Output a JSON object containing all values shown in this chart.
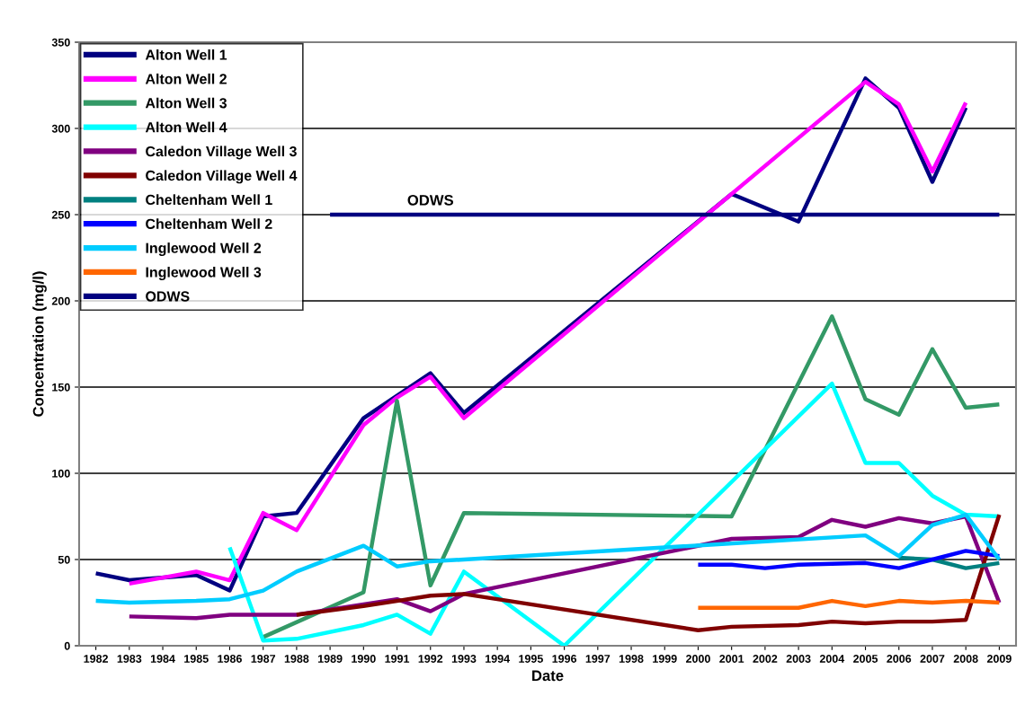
{
  "chart_data": {
    "type": "line",
    "xlabel": "Date",
    "ylabel": "Concentration (mg/l)",
    "xlim": [
      1981.5,
      2009.5
    ],
    "xticks": [
      1982,
      1983,
      1984,
      1985,
      1986,
      1987,
      1988,
      1989,
      1990,
      1991,
      1992,
      1993,
      1994,
      1995,
      1996,
      1997,
      1998,
      1999,
      2000,
      2001,
      2002,
      2003,
      2004,
      2005,
      2006,
      2007,
      2008,
      2009
    ],
    "ylim": [
      0,
      350
    ],
    "yticks": [
      0,
      50,
      100,
      150,
      200,
      250,
      300,
      350
    ],
    "grid": "y",
    "legend": "top left",
    "marker": "none",
    "line_style": "solid",
    "annotations": [
      {
        "text": "ODWS",
        "x": 1992,
        "y": 250
      }
    ],
    "series": [
      {
        "name": "Alton Well 1",
        "color": "#000080",
        "x": [
          1982,
          1983,
          1985,
          1986,
          1987,
          1988,
          1990,
          1991,
          1992,
          1993,
          2001,
          2003,
          2005,
          2006,
          2007,
          2008
        ],
        "values": [
          42,
          38,
          41,
          32,
          75,
          77,
          132,
          145,
          158,
          135,
          262,
          246,
          329,
          312,
          269,
          312
        ]
      },
      {
        "name": "Alton Well 2",
        "color": "#ff00ff",
        "x": [
          1983,
          1985,
          1986,
          1987,
          1988,
          1990,
          1991,
          1992,
          1993,
          2005,
          2006,
          2007,
          2008
        ],
        "values": [
          36,
          43,
          38,
          77,
          67,
          128,
          144,
          156,
          132,
          327,
          314,
          275,
          315
        ]
      },
      {
        "name": "Alton Well 3",
        "color": "#339966",
        "x": [
          1987,
          1990,
          1991,
          1992,
          1993,
          2001,
          2004,
          2005,
          2006,
          2007,
          2008,
          2009
        ],
        "values": [
          5,
          31,
          142,
          35,
          77,
          75,
          191,
          143,
          134,
          172,
          138,
          140
        ]
      },
      {
        "name": "Alton Well 4",
        "color": "#00ffff",
        "x": [
          1986,
          1987,
          1988,
          1990,
          1991,
          1992,
          1993,
          1996,
          2004,
          2005,
          2006,
          2007,
          2008,
          2009
        ],
        "values": [
          57,
          3,
          4,
          12,
          18,
          7,
          43,
          0,
          152,
          106,
          106,
          87,
          76,
          75
        ]
      },
      {
        "name": "Caledon Village Well 3",
        "color": "#800080",
        "x": [
          1983,
          1985,
          1986,
          1988,
          1991,
          1992,
          1993,
          2001,
          2003,
          2004,
          2005,
          2006,
          2007,
          2008,
          2009
        ],
        "values": [
          17,
          16,
          18,
          18,
          27,
          20,
          30,
          62,
          63,
          73,
          69,
          74,
          71,
          75,
          25
        ]
      },
      {
        "name": "Caledon Village Well 4",
        "color": "#800000",
        "x": [
          1988,
          1990,
          1991,
          1992,
          1993,
          2000,
          2001,
          2003,
          2004,
          2005,
          2006,
          2007,
          2008,
          2009
        ],
        "values": [
          18,
          23,
          26,
          29,
          30,
          9,
          11,
          12,
          14,
          13,
          14,
          14,
          15,
          76
        ]
      },
      {
        "name": "Cheltenham Well 1",
        "color": "#008080",
        "x": [
          2006,
          2007,
          2008,
          2009
        ],
        "values": [
          51,
          50,
          45,
          48
        ]
      },
      {
        "name": "Cheltenham Well 2",
        "color": "#0000ff",
        "x": [
          2000,
          2001,
          2002,
          2003,
          2005,
          2006,
          2007,
          2008,
          2009
        ],
        "values": [
          47,
          47,
          45,
          47,
          48,
          45,
          50,
          55,
          52
        ]
      },
      {
        "name": "Inglewood Well 2",
        "color": "#00ccff",
        "x": [
          1982,
          1983,
          1985,
          1986,
          1987,
          1988,
          1990,
          1991,
          1992,
          1993,
          2005,
          2006,
          2007,
          2008,
          2009
        ],
        "values": [
          26,
          25,
          26,
          27,
          32,
          43,
          58,
          46,
          49,
          50,
          64,
          52,
          70,
          76,
          50
        ]
      },
      {
        "name": "Inglewood Well 3",
        "color": "#ff6600",
        "x": [
          2000,
          2001,
          2002,
          2003,
          2004,
          2005,
          2006,
          2007,
          2008,
          2009
        ],
        "values": [
          22,
          22,
          22,
          22,
          26,
          23,
          26,
          25,
          26,
          25
        ]
      },
      {
        "name": "ODWS",
        "color": "#000080",
        "x": [
          1989,
          2009
        ],
        "values": [
          250,
          250
        ]
      }
    ]
  }
}
